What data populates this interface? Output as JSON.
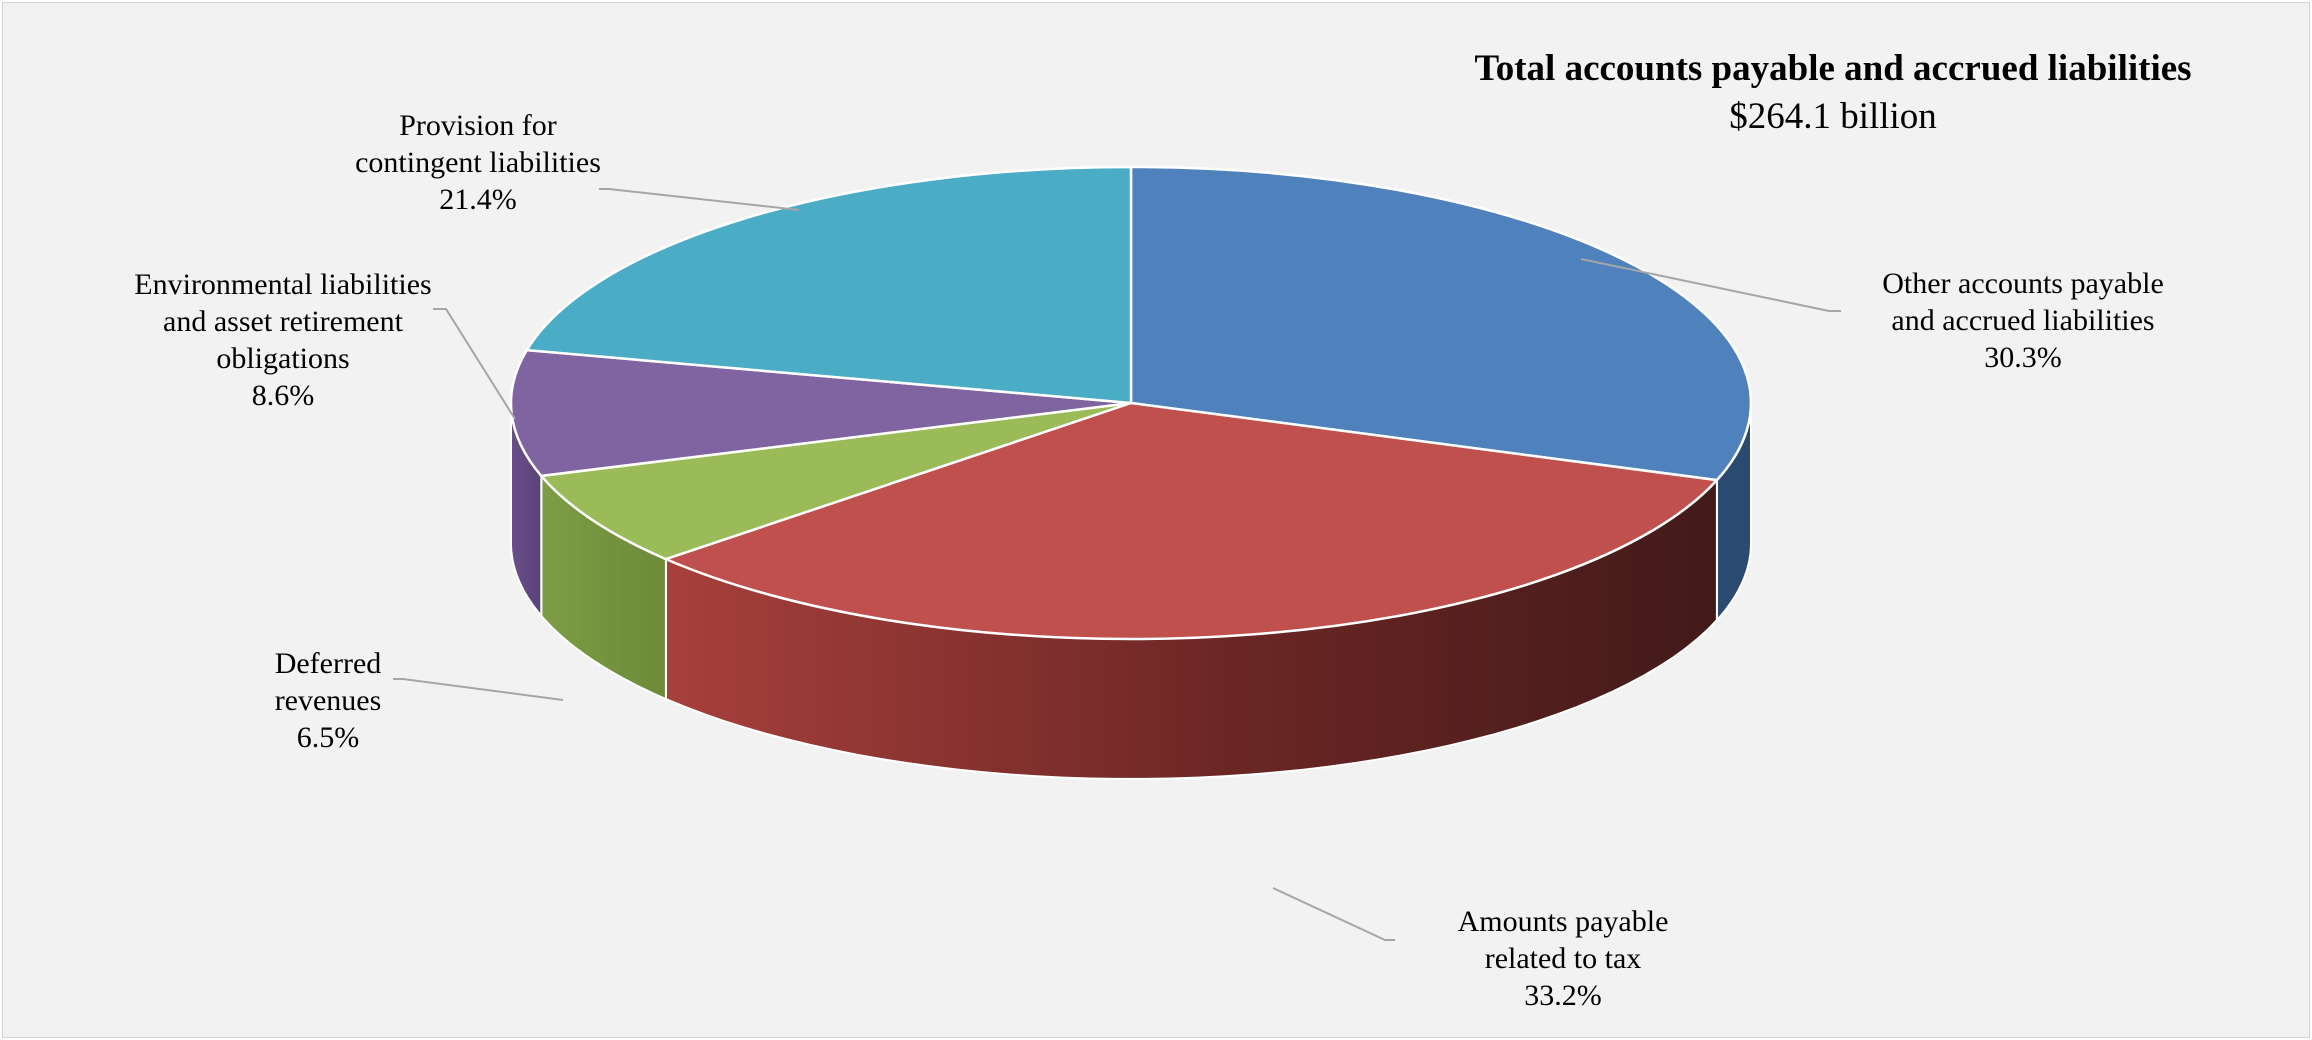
{
  "chart_data": {
    "type": "pie",
    "title": "Total accounts payable and accrued liabilities",
    "subtitle": "$264.1 billion",
    "slices": [
      {
        "name": "Other accounts payable and accrued liabilities",
        "label_lines": [
          "Other accounts payable",
          "and accrued liabilities"
        ],
        "value": 30.3,
        "value_label": "30.3%",
        "color": "#4f81bd",
        "side_color": "#2a4a70"
      },
      {
        "name": "Amounts payable related to tax",
        "label_lines": [
          "Amounts payable",
          "related to tax"
        ],
        "value": 33.2,
        "value_label": "33.2%",
        "color": "#c0504d",
        "side_color": "#7a2a28"
      },
      {
        "name": "Deferred revenues",
        "label_lines": [
          "Deferred",
          "revenues"
        ],
        "value": 6.5,
        "value_label": "6.5%",
        "color": "#9bbb59",
        "side_color": "#6f8c3a"
      },
      {
        "name": "Environmental liabilities and asset retirement obligations",
        "label_lines": [
          "Environmental liabilities",
          "and asset retirement",
          "obligations"
        ],
        "value": 8.6,
        "value_label": "8.6%",
        "color": "#8064a2",
        "side_color": "#523d6e"
      },
      {
        "name": "Provision for contingent liabilities",
        "label_lines": [
          "Provision for",
          "contingent liabilities"
        ],
        "value": 21.4,
        "value_label": "21.4%",
        "color": "#4bacc6",
        "side_color": "#2c7487"
      }
    ]
  }
}
